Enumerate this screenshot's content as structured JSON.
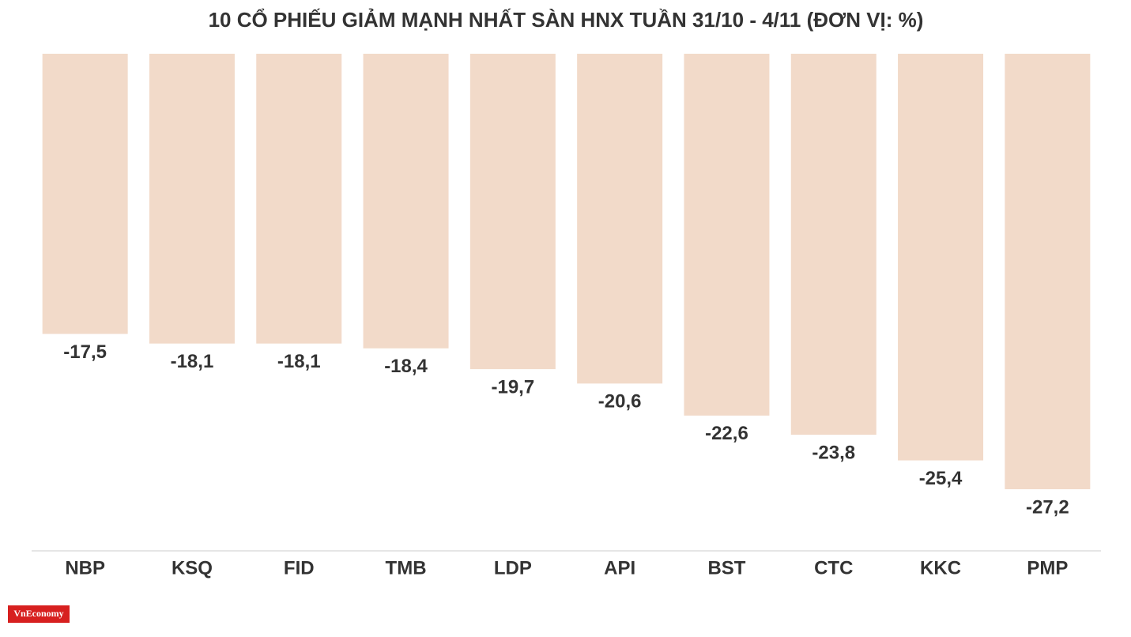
{
  "chart_data": {
    "type": "bar",
    "title": "10 CỔ PHIẾU GIẢM MẠNH NHẤT SÀN HNX TUẦN 31/10 - 4/11 (ĐƠN VỊ: %)",
    "categories": [
      "NBP",
      "KSQ",
      "FID",
      "TMB",
      "LDP",
      "API",
      "BST",
      "CTC",
      "KKC",
      "PMP"
    ],
    "values": [
      -17.5,
      -18.1,
      -18.1,
      -18.4,
      -19.7,
      -20.6,
      -22.6,
      -23.8,
      -25.4,
      -27.2
    ],
    "value_labels": [
      "-17,5",
      "-18,1",
      "-18,1",
      "-18,4",
      "-19,7",
      "-20,6",
      "-22,6",
      "-23,8",
      "-25,4",
      "-27,2"
    ],
    "color": "#f2dac9",
    "ylim": [
      -31,
      0
    ],
    "logo": "VnEconomy"
  }
}
